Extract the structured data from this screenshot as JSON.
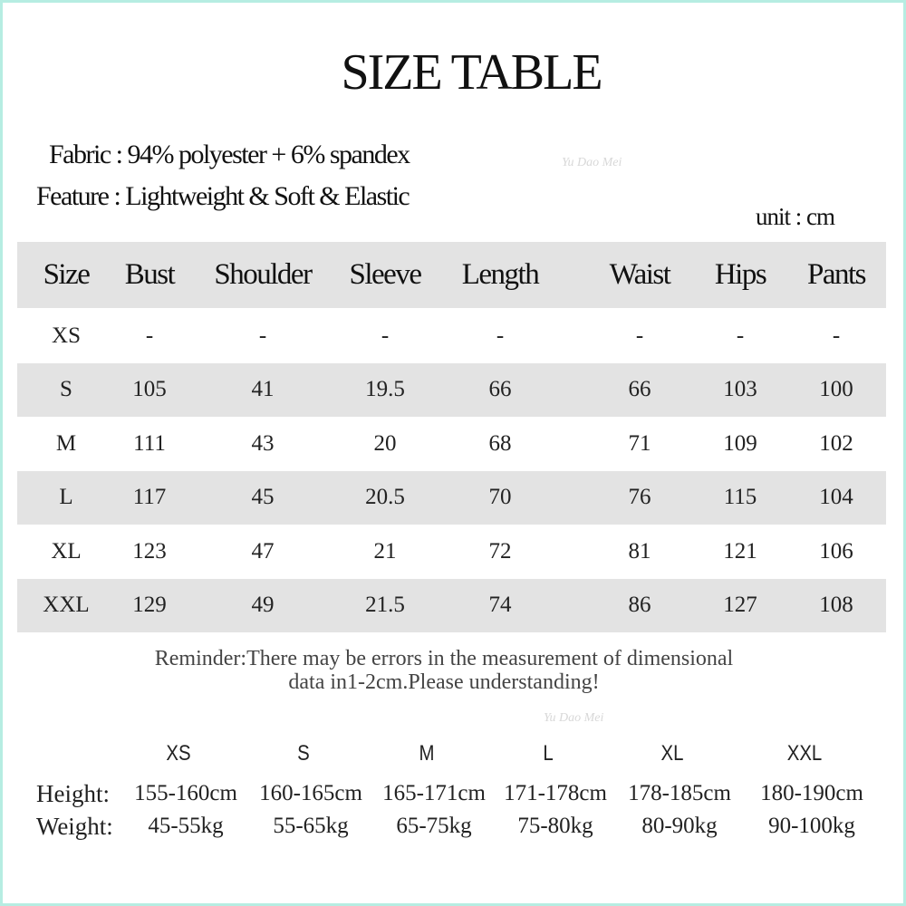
{
  "title": "SIZE TABLE",
  "fabric": "Fabric : 94% polyester + 6% spandex",
  "feature": "Feature : Lightweight  &  Soft  &  Elastic",
  "unit": "unit :  cm",
  "table": {
    "headers": [
      "Size",
      "Bust",
      "Shoulder",
      "Sleeve",
      "Length",
      "Waist",
      "Hips",
      "Pants"
    ],
    "rows": [
      [
        "XS",
        "-",
        "-",
        "-",
        "-",
        "-",
        "-",
        "-"
      ],
      [
        "S",
        "105",
        "41",
        "19.5",
        "66",
        "66",
        "103",
        "100"
      ],
      [
        "M",
        "111",
        "43",
        "20",
        "68",
        "71",
        "109",
        "102"
      ],
      [
        "L",
        "117",
        "45",
        "20.5",
        "70",
        "76",
        "115",
        "104"
      ],
      [
        "XL",
        "123",
        "47",
        "21",
        "72",
        "81",
        "121",
        "106"
      ],
      [
        "XXL",
        "129",
        "49",
        "21.5",
        "74",
        "86",
        "127",
        "108"
      ]
    ]
  },
  "reminder": [
    "Reminder:There may be errors in the measurement of dimensional",
    "data in1-2cm.Please understanding!"
  ],
  "body_table": {
    "sizes": [
      "XS",
      "S",
      "M",
      "L",
      "XL",
      "XXL"
    ],
    "height_label": "Height:",
    "heights": [
      "155-160cm",
      "160-165cm",
      "165-171cm",
      "171-178cm",
      "178-185cm",
      "180-190cm"
    ],
    "weight_label": "Weight:",
    "weights": [
      "45-55kg",
      "55-65kg",
      "65-75kg",
      "75-80kg",
      "80-90kg",
      "90-100kg"
    ]
  },
  "watermark": "Yu Dao Mei",
  "colors": {
    "border": "#b6ede2",
    "stripe": "#e3e3e3"
  }
}
